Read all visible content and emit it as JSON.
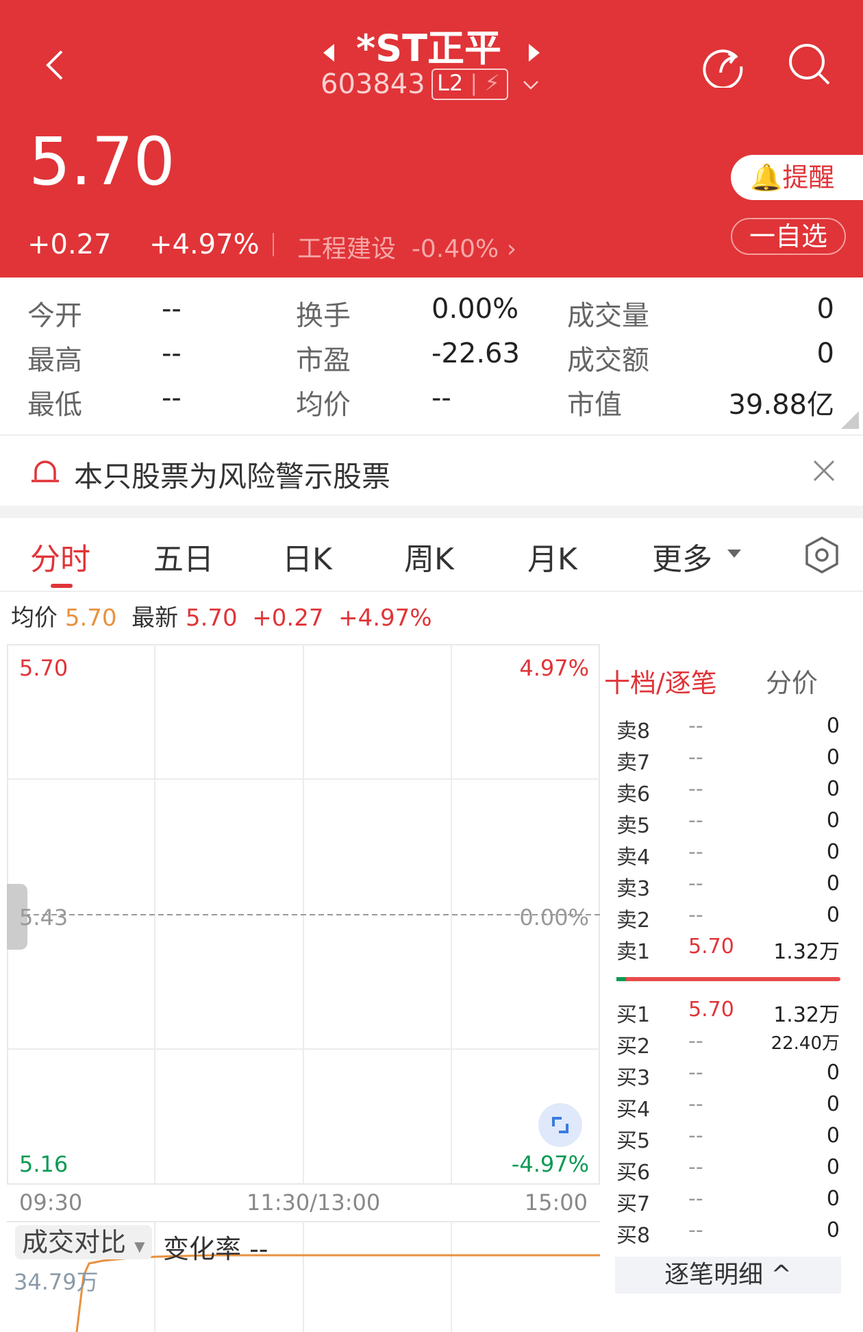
{
  "header": {
    "title": "*ST正平",
    "code": "603843",
    "badge": "L2",
    "price": "5.70",
    "change": "+0.27",
    "change_pct": "+4.97%",
    "sector": "工程建设",
    "sector_pct": "-0.40%",
    "alert_label": "提醒",
    "watch_label": "一自选"
  },
  "stats": [
    {
      "label": "今开",
      "value": "--"
    },
    {
      "label": "换手",
      "value": "0.00%"
    },
    {
      "label": "成交量",
      "value": "0"
    },
    {
      "label": "最高",
      "value": "--"
    },
    {
      "label": "市盈",
      "value": "-22.63"
    },
    {
      "label": "成交额",
      "value": "0"
    },
    {
      "label": "最低",
      "value": "--"
    },
    {
      "label": "均价",
      "value": "--"
    },
    {
      "label": "市值",
      "value": "39.88亿"
    }
  ],
  "warning": "本只股票为风险警示股票",
  "tabs": [
    "分时",
    "五日",
    "日K",
    "周K",
    "月K",
    "更多"
  ],
  "info": {
    "avg_label": "均价",
    "avg": "5.70",
    "latest_label": "最新",
    "latest": "5.70",
    "chg": "+0.27",
    "pct": "+4.97%"
  },
  "chart": {
    "high": "5.70",
    "high_pct": "4.97%",
    "mid": "5.43",
    "mid_pct": "0.00%",
    "low": "5.16",
    "low_pct": "-4.97%",
    "times": [
      "09:30",
      "11:30/13:00",
      "15:00"
    ]
  },
  "volume": {
    "selector": "成交对比",
    "rate": "变化率 --",
    "value": "34.79万"
  },
  "orderbook": {
    "tab1": "十档/逐笔",
    "tab2": "分价",
    "sells": [
      {
        "l": "卖8",
        "p": "--",
        "v": "0"
      },
      {
        "l": "卖7",
        "p": "--",
        "v": "0"
      },
      {
        "l": "卖6",
        "p": "--",
        "v": "0"
      },
      {
        "l": "卖5",
        "p": "--",
        "v": "0"
      },
      {
        "l": "卖4",
        "p": "--",
        "v": "0"
      },
      {
        "l": "卖3",
        "p": "--",
        "v": "0"
      },
      {
        "l": "卖2",
        "p": "--",
        "v": "0"
      },
      {
        "l": "卖1",
        "p": "5.70",
        "v": "1.32万"
      }
    ],
    "buys": [
      {
        "l": "买1",
        "p": "5.70",
        "v": "1.32万"
      },
      {
        "l": "买2",
        "p": "--",
        "v": "22.40万"
      },
      {
        "l": "买3",
        "p": "--",
        "v": "0"
      },
      {
        "l": "买4",
        "p": "--",
        "v": "0"
      },
      {
        "l": "买5",
        "p": "--",
        "v": "0"
      },
      {
        "l": "买6",
        "p": "--",
        "v": "0"
      },
      {
        "l": "买7",
        "p": "--",
        "v": "0"
      },
      {
        "l": "买8",
        "p": "--",
        "v": "0"
      }
    ],
    "detail_button": "逐笔明细"
  },
  "colors": {
    "brand": "#e03438",
    "up": "#e03438",
    "down": "#0a9a52",
    "avg": "#e8913f"
  }
}
